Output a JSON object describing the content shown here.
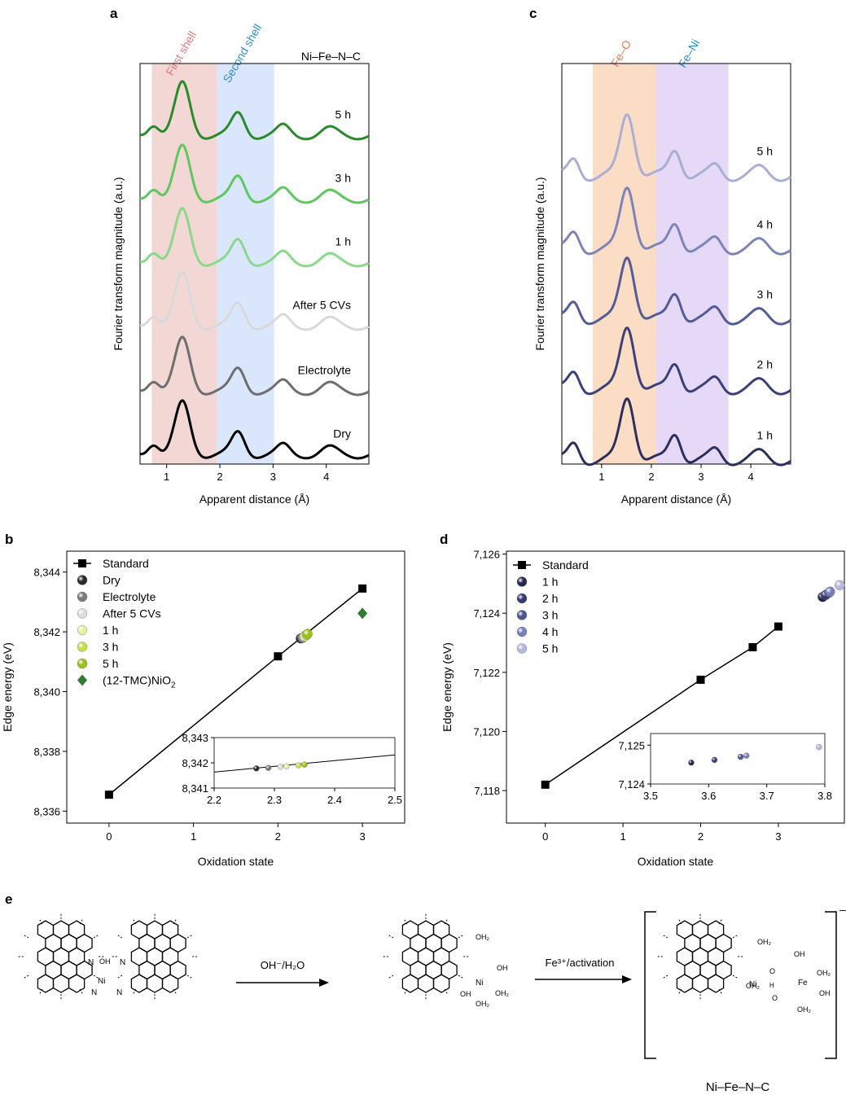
{
  "colors": {
    "first_shell_band": "#f2d7d5",
    "second_shell_band": "#d9e6fb",
    "fe_o_band": "#fbdcc4",
    "fe_ni_band": "#e6d9f7",
    "first_shell_label": "#e07a7a",
    "second_shell_label": "#2f8fc8",
    "fe_o_label": "#e07a5a",
    "fe_ni_label": "#2f8fc8",
    "standard": "#000000",
    "tmc": "#2e7d32"
  },
  "panel_e": {
    "letter": "e",
    "arrow1_label": "OH⁻/H₂O",
    "arrow2_label": "Fe³⁺/activation",
    "product_label": "Ni–Fe–N–C",
    "charge": "–",
    "atom_labels": [
      "N",
      "N",
      "N",
      "N",
      "OH",
      "Ni",
      "OH₂",
      "OH",
      "OH₂",
      "OH₂",
      "Ni",
      "OH",
      "OH₂",
      "O",
      "H",
      "O",
      "Fe",
      "OH",
      "OH₂",
      "OH",
      "OH₂",
      "OH₂",
      "Ni"
    ]
  },
  "chart_data": [
    {
      "panel": "a",
      "type": "line",
      "title": "Ni–Fe–N–C",
      "xlabel": "Apparent distance (Å)",
      "ylabel": "Fourier transform magnitude (a.u.)",
      "xlim": [
        0.5,
        4.8
      ],
      "xticks": [
        1,
        2,
        3,
        4
      ],
      "bands": [
        {
          "label": "First shell",
          "from": 0.72,
          "to": 1.95,
          "color": "#f2d7d5"
        },
        {
          "label": "Second shell",
          "from": 1.95,
          "to": 3.02,
          "color": "#d9e6fb"
        }
      ],
      "series": [
        {
          "name": "Dry",
          "color": "#000000",
          "peaks": [
            1.3,
            2.35,
            3.2,
            4.05
          ]
        },
        {
          "name": "Electrolyte",
          "color": "#6e6e6e",
          "peaks": [
            1.3,
            2.35,
            3.2,
            4.05
          ]
        },
        {
          "name": "After 5 CVs",
          "color": "#d9d9d9",
          "peaks": [
            1.3,
            2.35,
            3.2,
            4.05
          ]
        },
        {
          "name": "1 h",
          "color": "#8ad98a",
          "peaks": [
            1.3,
            2.35,
            3.2,
            4.05
          ]
        },
        {
          "name": "3 h",
          "color": "#5ec85e",
          "peaks": [
            1.3,
            2.35,
            3.2,
            4.05
          ]
        },
        {
          "name": "5 h",
          "color": "#2a8a2a",
          "peaks": [
            1.3,
            2.35,
            3.2,
            4.05
          ]
        }
      ]
    },
    {
      "panel": "c",
      "type": "line",
      "xlabel": "Apparent distance (Å)",
      "ylabel": "Fourier transform magnitude (a.u.)",
      "xlim": [
        0.2,
        4.8
      ],
      "xticks": [
        1,
        2,
        3,
        4
      ],
      "bands": [
        {
          "label": "Fe–O",
          "from": 0.82,
          "to": 2.1,
          "color": "#fbdcc4"
        },
        {
          "label": "Fe–Ni",
          "from": 2.1,
          "to": 3.55,
          "color": "#e6d9f7"
        }
      ],
      "series": [
        {
          "name": "1 h",
          "color": "#2b2f5c",
          "peaks": [
            1.52,
            2.48,
            3.3,
            4.2
          ]
        },
        {
          "name": "2 h",
          "color": "#3a4178",
          "peaks": [
            1.52,
            2.48,
            3.3,
            4.2
          ]
        },
        {
          "name": "3 h",
          "color": "#545c96",
          "peaks": [
            1.52,
            2.48,
            3.3,
            4.2
          ]
        },
        {
          "name": "4 h",
          "color": "#7d84b8",
          "peaks": [
            1.52,
            2.48,
            3.3,
            4.2
          ]
        },
        {
          "name": "5 h",
          "color": "#a9aed3",
          "peaks": [
            1.52,
            2.48,
            3.3,
            4.2
          ]
        }
      ]
    },
    {
      "panel": "b",
      "type": "scatter",
      "xlabel": "Oxidation state",
      "ylabel": "Edge energy (eV)",
      "xlim": [
        -0.5,
        3.5
      ],
      "ylim": [
        8335.6,
        8344.7
      ],
      "xticks": [
        0,
        1,
        2,
        3
      ],
      "yticks": [
        8336,
        8338,
        8340,
        8342,
        8344
      ],
      "ytick_labels": [
        "8,336",
        "8,338",
        "8,340",
        "8,342",
        "8,344"
      ],
      "legend": "top-left",
      "standard": {
        "name": "Standard",
        "x": [
          0,
          2,
          3
        ],
        "y": [
          8336.55,
          8341.18,
          8343.45
        ],
        "color": "#000000"
      },
      "series": [
        {
          "name": "Dry",
          "x": 2.27,
          "y": 8341.78,
          "color": "#2a2a2a",
          "marker": "sphere"
        },
        {
          "name": "Electrolyte",
          "x": 2.29,
          "y": 8341.8,
          "color": "#7a7a7a",
          "marker": "sphere"
        },
        {
          "name": "After 5 CVs",
          "x": 2.31,
          "y": 8341.84,
          "color": "#dcdcdc",
          "marker": "sphere"
        },
        {
          "name": "1 h",
          "x": 2.32,
          "y": 8341.86,
          "color": "#e3f0a3",
          "marker": "sphere"
        },
        {
          "name": "3 h",
          "x": 2.34,
          "y": 8341.9,
          "color": "#c2e04a",
          "marker": "sphere"
        },
        {
          "name": "5 h",
          "x": 2.35,
          "y": 8341.93,
          "color": "#9bc21a",
          "marker": "sphere"
        },
        {
          "name": "(12-TMC)NiO",
          "sub": "2",
          "x": 3.0,
          "y": 8342.62,
          "color": "#2e7d32",
          "marker": "diamond"
        }
      ],
      "inset": {
        "xlim": [
          2.2,
          2.5
        ],
        "ylim": [
          8341,
          8343
        ],
        "xticks": [
          2.2,
          2.3,
          2.4,
          2.5
        ],
        "yticks": [
          8341,
          8342,
          8343
        ],
        "ytick_labels": [
          "8,341",
          "8,342",
          "8,343"
        ]
      }
    },
    {
      "panel": "d",
      "type": "scatter",
      "xlabel": "Oxidation state",
      "ylabel": "Edge energy (eV)",
      "xlim": [
        -0.5,
        3.85
      ],
      "ylim": [
        7116.9,
        7126.1
      ],
      "xticks": [
        0,
        1,
        2,
        3
      ],
      "yticks": [
        7118,
        7120,
        7122,
        7124,
        7126
      ],
      "ytick_labels": [
        "7,118",
        "7,120",
        "7,122",
        "7,124",
        "7,126"
      ],
      "legend": "top-left",
      "standard": {
        "name": "Standard",
        "x": [
          0,
          2,
          2.67,
          3
        ],
        "y": [
          7118.2,
          7121.75,
          7122.85,
          7123.55
        ],
        "color": "#000000"
      },
      "series": [
        {
          "name": "1 h",
          "x": 3.57,
          "y": 7124.55,
          "color": "#252a55",
          "marker": "sphere"
        },
        {
          "name": "2 h",
          "x": 3.61,
          "y": 7124.62,
          "color": "#353c74",
          "marker": "sphere"
        },
        {
          "name": "3 h",
          "x": 3.655,
          "y": 7124.7,
          "color": "#4c5592",
          "marker": "sphere"
        },
        {
          "name": "4 h",
          "x": 3.665,
          "y": 7124.73,
          "color": "#7880bc",
          "marker": "sphere"
        },
        {
          "name": "5 h",
          "x": 3.79,
          "y": 7124.95,
          "color": "#b4b8de",
          "marker": "sphere"
        }
      ],
      "inset": {
        "xlim": [
          3.5,
          3.8
        ],
        "ylim": [
          7124,
          7125.3
        ],
        "xticks": [
          3.5,
          3.6,
          3.7,
          3.8
        ],
        "yticks": [
          7124,
          7125
        ],
        "ytick_labels": [
          "7,124",
          "7,125"
        ]
      }
    }
  ]
}
